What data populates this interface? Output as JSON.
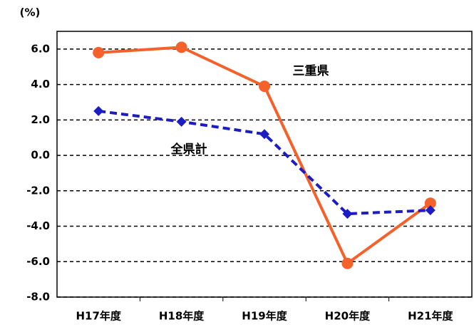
{
  "chart_data": {
    "type": "line",
    "y_unit": "(%)",
    "categories": [
      "H17年度",
      "H18年度",
      "H19年度",
      "H20年度",
      "H21年度"
    ],
    "series": [
      {
        "name": "三重県",
        "color": "#f4612a",
        "line_style": "solid",
        "marker": "circle",
        "values": [
          5.8,
          6.1,
          3.9,
          -6.1,
          -2.7
        ]
      },
      {
        "name": "全県計",
        "color": "#1c1cc4",
        "line_style": "dashed",
        "marker": "diamond",
        "values": [
          2.5,
          1.9,
          1.2,
          -3.3,
          -3.1
        ]
      }
    ],
    "ylim": [
      -8,
      7
    ],
    "yticks": [
      {
        "value": -8,
        "label": "-8.0"
      },
      {
        "value": -6,
        "label": "-6.0"
      },
      {
        "value": -4,
        "label": "-4.0"
      },
      {
        "value": -2,
        "label": "-2.0"
      },
      {
        "value": 0,
        "label": "0.0"
      },
      {
        "value": 2,
        "label": "2.0"
      },
      {
        "value": 4,
        "label": "4.0"
      },
      {
        "value": 6,
        "label": "6.0"
      }
    ],
    "grid": true
  }
}
